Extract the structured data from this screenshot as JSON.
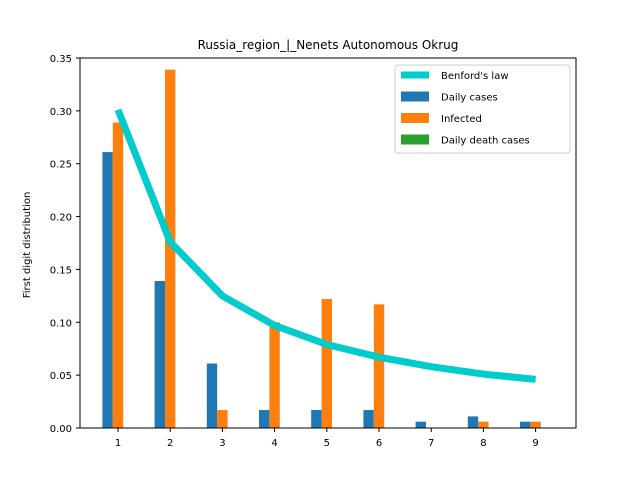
{
  "chart_data": {
    "type": "bar",
    "title": "Russia_region_|_Nenets Autonomous Okrug",
    "xlabel": "",
    "ylabel": "First digit distribution",
    "categories": [
      "1",
      "2",
      "3",
      "4",
      "5",
      "6",
      "7",
      "8",
      "9"
    ],
    "ylim": [
      0,
      0.35
    ],
    "yticks": [
      "0.00",
      "0.05",
      "0.10",
      "0.15",
      "0.20",
      "0.25",
      "0.30",
      "0.35"
    ],
    "grid": false,
    "legend_position": "top-right",
    "series": [
      {
        "name": "Daily cases",
        "kind": "bar",
        "color": "#1f77b4",
        "values": [
          0.261,
          0.139,
          0.061,
          0.017,
          0.017,
          0.017,
          0.006,
          0.011,
          0.006
        ]
      },
      {
        "name": "Infected",
        "kind": "bar",
        "color": "#ff7f0e",
        "values": [
          0.289,
          0.339,
          0.017,
          0.1,
          0.122,
          0.117,
          0.0,
          0.006,
          0.006
        ]
      },
      {
        "name": "Daily death cases",
        "kind": "bar",
        "color": "#2ca02c",
        "values": [
          0,
          0,
          0,
          0,
          0,
          0,
          0,
          0,
          0
        ]
      },
      {
        "name": "Benford's law",
        "kind": "line",
        "color": "#00cccc",
        "values": [
          0.301,
          0.176,
          0.125,
          0.097,
          0.079,
          0.067,
          0.058,
          0.051,
          0.046
        ]
      }
    ]
  }
}
